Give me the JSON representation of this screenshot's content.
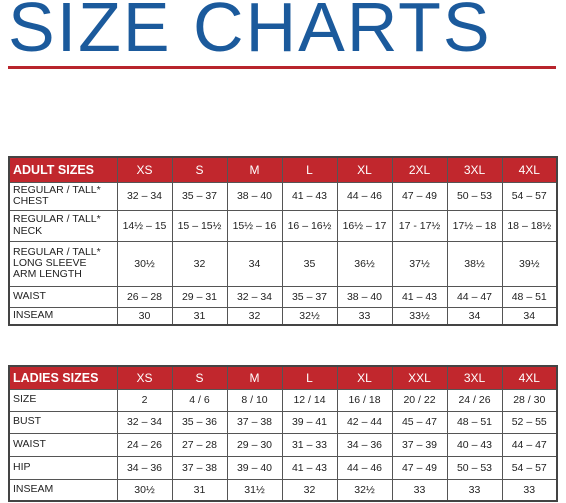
{
  "title": "SIZE CHARTS",
  "tables": [
    {
      "header": [
        "ADULT SIZES",
        "XS",
        "S",
        "M",
        "L",
        "XL",
        "2XL",
        "3XL",
        "4XL"
      ],
      "rows": [
        {
          "label": "REGULAR / TALL*\nCHEST",
          "cells": [
            "32 – 34",
            "35 – 37",
            "38 – 40",
            "41 – 43",
            "44 – 46",
            "47 – 49",
            "50 – 53",
            "54 – 57"
          ]
        },
        {
          "label": "REGULAR / TALL*\nNECK",
          "cells": [
            "14½ – 15",
            "15 – 15½",
            "15½ – 16",
            "16 – 16½",
            "16½ – 17",
            "17 - 17½",
            "17½ – 18",
            "18 – 18½"
          ]
        },
        {
          "label": "REGULAR / TALL*\nLONG SLEEVE\nARM LENGTH",
          "cells": [
            "30½",
            "32",
            "34",
            "35",
            "36½",
            "37½",
            "38½",
            "39½"
          ]
        },
        {
          "label": "WAIST",
          "cells": [
            "26 – 28",
            "29 – 31",
            "32 – 34",
            "35 – 37",
            "38 – 40",
            "41 – 43",
            "44 – 47",
            "48 – 51"
          ]
        },
        {
          "label": "INSEAM",
          "cells": [
            "30",
            "31",
            "32",
            "32½",
            "33",
            "33½",
            "34",
            "34"
          ]
        }
      ]
    },
    {
      "header": [
        "LADIES SIZES",
        "XS",
        "S",
        "M",
        "L",
        "XL",
        "XXL",
        "3XL",
        "4XL"
      ],
      "rows": [
        {
          "label": "SIZE",
          "cells": [
            "2",
            "4 / 6",
            "8 / 10",
            "12 / 14",
            "16 / 18",
            "20 / 22",
            "24 / 26",
            "28 / 30"
          ]
        },
        {
          "label": "BUST",
          "cells": [
            "32 – 34",
            "35 – 36",
            "37 – 38",
            "39 – 41",
            "42 – 44",
            "45 – 47",
            "48 – 51",
            "52 – 55"
          ]
        },
        {
          "label": "WAIST",
          "cells": [
            "24 – 26",
            "27 – 28",
            "29 – 30",
            "31 – 33",
            "34 – 36",
            "37 – 39",
            "40 – 43",
            "44 – 47"
          ]
        },
        {
          "label": "HIP",
          "cells": [
            "34 – 36",
            "37 – 38",
            "39 – 40",
            "41 – 43",
            "44 – 46",
            "47 – 49",
            "50 – 53",
            "54 – 57"
          ]
        },
        {
          "label": "INSEAM",
          "cells": [
            "30½",
            "31",
            "31½",
            "32",
            "32½",
            "33",
            "33",
            "33"
          ]
        }
      ]
    }
  ]
}
